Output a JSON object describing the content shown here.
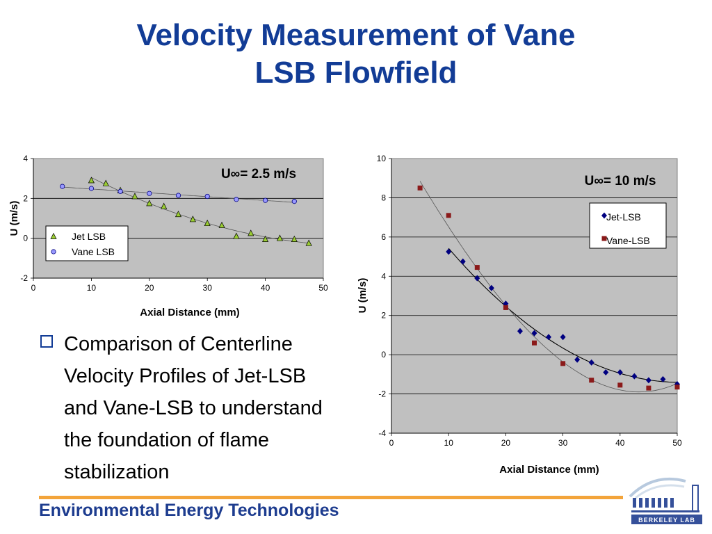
{
  "slide": {
    "title_line1": "Velocity Measurement of Vane",
    "title_line2": "LSB Flowfield",
    "bullet_text": "Comparison of Centerline Velocity Profiles of Jet-LSB and Vane-LSB to understand the foundation of flame stabilization",
    "footer": "Environmental Energy Technologies",
    "logo_text": "Berkeley Lab"
  },
  "colors": {
    "title": "#123c96",
    "plot_bg": "#c0c0c0",
    "footer_line": "#f3a43a",
    "jet_left": "#9acd32",
    "vane_left": "#9999ff",
    "jet_right": "#000080",
    "vane_right": "#8b1a1a"
  },
  "chart_data": [
    {
      "type": "scatter",
      "annotation": "U∞= 2.5 m/s",
      "xlabel": "Axial Distance (mm)",
      "ylabel": "U (m/s)",
      "xlim": [
        0,
        50
      ],
      "ylim": [
        -2,
        4
      ],
      "xticks": [
        0,
        10,
        20,
        30,
        40,
        50
      ],
      "yticks": [
        -2,
        0,
        2,
        4
      ],
      "grid": "horizontal",
      "legend": "bottom-left",
      "series": [
        {
          "name": "Jet LSB",
          "marker": "triangle",
          "x": [
            10,
            12.5,
            15,
            17.5,
            20,
            22.5,
            25,
            27.5,
            30,
            32.5,
            35,
            37.5,
            40,
            42.5,
            45,
            47.5
          ],
          "y": [
            2.9,
            2.75,
            2.4,
            2.1,
            1.75,
            1.6,
            1.2,
            0.95,
            0.75,
            0.65,
            0.1,
            0.25,
            -0.05,
            0.0,
            -0.05,
            -0.25
          ]
        },
        {
          "name": "Vane LSB",
          "marker": "circle",
          "x": [
            5,
            10,
            15,
            20,
            25,
            30,
            35,
            40,
            45
          ],
          "y": [
            2.6,
            2.5,
            2.35,
            2.25,
            2.15,
            2.1,
            1.95,
            1.9,
            1.85
          ]
        }
      ]
    },
    {
      "type": "scatter",
      "annotation": "U∞= 10 m/s",
      "xlabel": "Axial Distance (mm)",
      "ylabel": "U (m/s)",
      "xlim": [
        0,
        50
      ],
      "ylim": [
        -4,
        10
      ],
      "xticks": [
        0,
        10,
        20,
        30,
        40,
        50
      ],
      "yticks": [
        -4,
        -2,
        0,
        2,
        4,
        6,
        8,
        10
      ],
      "grid": "horizontal",
      "legend": "top-right",
      "series": [
        {
          "name": "Jet-LSB",
          "marker": "diamond",
          "x": [
            10,
            12.5,
            15,
            17.5,
            20,
            22.5,
            25,
            27.5,
            30,
            32.5,
            35,
            37.5,
            40,
            42.5,
            45,
            47.5,
            50
          ],
          "y": [
            5.25,
            4.75,
            3.9,
            3.4,
            2.6,
            1.2,
            1.1,
            0.9,
            0.9,
            -0.25,
            -0.4,
            -0.9,
            -0.9,
            -1.1,
            -1.3,
            -1.25,
            -1.5
          ]
        },
        {
          "name": "Vane-LSB",
          "marker": "square",
          "x": [
            5,
            10,
            15,
            20,
            25,
            30,
            35,
            40,
            45,
            50
          ],
          "y": [
            8.5,
            7.1,
            4.45,
            2.4,
            0.6,
            -0.45,
            -1.3,
            -1.55,
            -1.7,
            -1.65
          ]
        }
      ]
    }
  ]
}
